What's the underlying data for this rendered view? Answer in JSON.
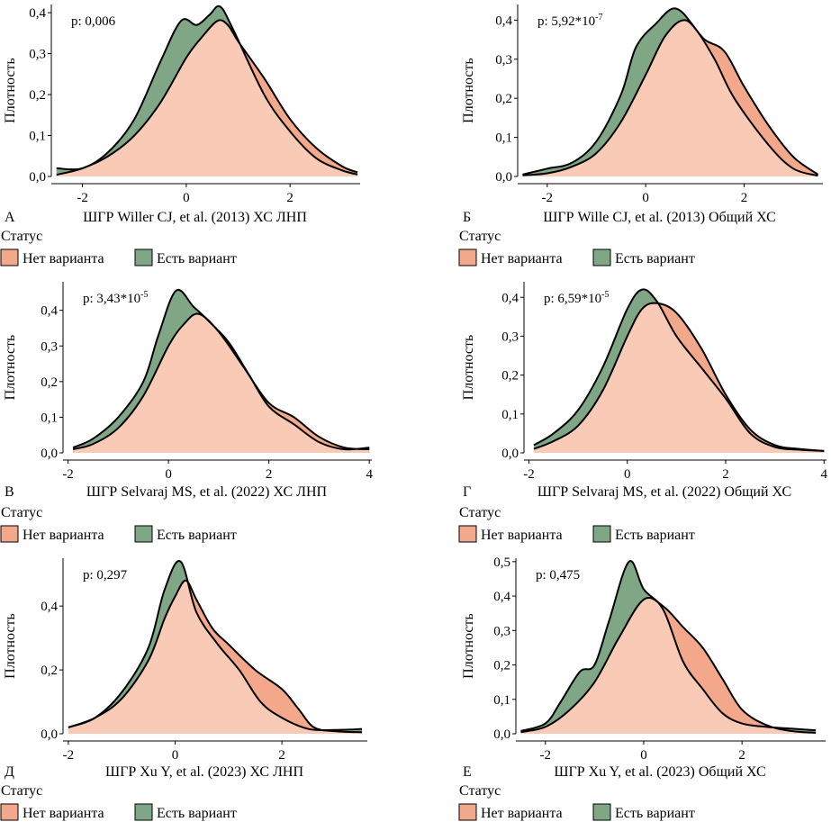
{
  "ylabel": "Плотность",
  "legend": {
    "title": "Статус",
    "items": [
      {
        "label": "Нет варианта",
        "fill": "#F3A78B"
      },
      {
        "label": "Есть вариант",
        "fill": "#7FA785"
      }
    ]
  },
  "colors": {
    "no_variant_fill": "#F3A78B",
    "has_variant_fill": "#7FA785",
    "overlap_fill": "#F9CBB6",
    "line": "#000000"
  },
  "chart_data": [
    {
      "type": "area",
      "panel": "А",
      "xlabel": "ШГР Willer CJ, et al. (2013) ХС ЛНП",
      "annotation": "p: 0,006",
      "xlim": [
        -2.6,
        3.35
      ],
      "ylim": [
        0,
        0.42
      ],
      "xticks": [
        {
          "v": -2,
          "label": "-2"
        },
        {
          "v": 0,
          "label": "0"
        },
        {
          "v": 2,
          "label": "2"
        }
      ],
      "yticks": [
        {
          "v": 0,
          "label": "0,0"
        },
        {
          "v": 0.1,
          "label": "0,1"
        },
        {
          "v": 0.2,
          "label": "0,2"
        },
        {
          "v": 0.3,
          "label": "0,3"
        },
        {
          "v": 0.4,
          "label": "0,4"
        }
      ],
      "series": [
        {
          "name": "Нет варианта",
          "x": [
            -2.5,
            -2.0,
            -1.5,
            -1.0,
            -0.5,
            0.0,
            0.3,
            0.6,
            0.8,
            1.0,
            1.5,
            2.0,
            2.5,
            3.0,
            3.3
          ],
          "y": [
            0.004,
            0.02,
            0.05,
            0.1,
            0.18,
            0.29,
            0.34,
            0.38,
            0.37,
            0.33,
            0.24,
            0.14,
            0.07,
            0.025,
            0.01
          ]
        },
        {
          "name": "Есть вариант",
          "x": [
            -2.5,
            -2.0,
            -1.5,
            -1.0,
            -0.5,
            -0.1,
            0.2,
            0.45,
            0.65,
            0.9,
            1.5,
            2.0,
            2.5,
            3.0,
            3.3
          ],
          "y": [
            0.02,
            0.02,
            0.06,
            0.14,
            0.28,
            0.38,
            0.37,
            0.395,
            0.415,
            0.36,
            0.2,
            0.11,
            0.045,
            0.015,
            0.005
          ]
        }
      ]
    },
    {
      "type": "area",
      "panel": "Б",
      "xlabel": "ШГР Wille CJ, et al. (2013) Общий ХС",
      "annotation": "p: 5,92*10",
      "annotation_sup": "-7",
      "xlim": [
        -2.6,
        3.6
      ],
      "ylim": [
        0,
        0.44
      ],
      "xticks": [
        {
          "v": -2,
          "label": "-2"
        },
        {
          "v": 0,
          "label": "0"
        },
        {
          "v": 2,
          "label": "2"
        }
      ],
      "yticks": [
        {
          "v": 0,
          "label": "0,0"
        },
        {
          "v": 0.1,
          "label": "0,1"
        },
        {
          "v": 0.2,
          "label": "0,2"
        },
        {
          "v": 0.3,
          "label": "0,3"
        },
        {
          "v": 0.4,
          "label": "0,4"
        }
      ],
      "series": [
        {
          "name": "Нет варианта",
          "x": [
            -2.5,
            -2.0,
            -1.5,
            -1.0,
            -0.5,
            0.0,
            0.4,
            0.8,
            1.2,
            1.6,
            2.0,
            2.5,
            3.0,
            3.5
          ],
          "y": [
            0.003,
            0.008,
            0.025,
            0.06,
            0.14,
            0.26,
            0.36,
            0.4,
            0.35,
            0.32,
            0.23,
            0.13,
            0.05,
            0.005
          ]
        },
        {
          "name": "Есть вариант",
          "x": [
            -2.5,
            -2.0,
            -1.5,
            -1.0,
            -0.5,
            -0.2,
            0.2,
            0.6,
            1.0,
            1.4,
            1.8,
            2.5,
            3.0,
            3.5
          ],
          "y": [
            0.005,
            0.02,
            0.035,
            0.09,
            0.21,
            0.33,
            0.39,
            0.43,
            0.38,
            0.3,
            0.2,
            0.08,
            0.02,
            0.002
          ]
        }
      ]
    },
    {
      "type": "area",
      "panel": "В",
      "xlabel": "ШГР Selvaraj MS, et al. (2022) ХС ЛНП",
      "annotation": "p: 3,43*10",
      "annotation_sup": "-5",
      "xlim": [
        -2.1,
        4.05
      ],
      "ylim": [
        0,
        0.48
      ],
      "xticks": [
        {
          "v": -2,
          "label": "-2"
        },
        {
          "v": 0,
          "label": "0"
        },
        {
          "v": 2,
          "label": "2"
        },
        {
          "v": 4,
          "label": "4"
        }
      ],
      "yticks": [
        {
          "v": 0,
          "label": "0,0"
        },
        {
          "v": 0.1,
          "label": "0,1"
        },
        {
          "v": 0.2,
          "label": "0,2"
        },
        {
          "v": 0.3,
          "label": "0,3"
        },
        {
          "v": 0.4,
          "label": "0,4"
        }
      ],
      "series": [
        {
          "name": "Нет варианта",
          "x": [
            -1.9,
            -1.5,
            -1.0,
            -0.5,
            0.0,
            0.3,
            0.6,
            1.0,
            1.5,
            2.0,
            2.5,
            3.0,
            3.5,
            4.0
          ],
          "y": [
            0.01,
            0.025,
            0.07,
            0.16,
            0.3,
            0.36,
            0.39,
            0.34,
            0.24,
            0.14,
            0.1,
            0.045,
            0.015,
            0.01
          ]
        },
        {
          "name": "Есть вариант",
          "x": [
            -1.9,
            -1.5,
            -1.0,
            -0.5,
            -0.2,
            0.15,
            0.5,
            0.8,
            1.2,
            1.6,
            2.0,
            2.5,
            3.0,
            3.5,
            4.0
          ],
          "y": [
            0.015,
            0.04,
            0.1,
            0.2,
            0.33,
            0.455,
            0.41,
            0.37,
            0.31,
            0.22,
            0.13,
            0.08,
            0.03,
            0.01,
            0.015
          ]
        }
      ]
    },
    {
      "type": "area",
      "panel": "Г",
      "xlabel": "ШГР Selvaraj MS, et al. (2022) Общий ХС",
      "annotation": "p: 6,59*10",
      "annotation_sup": "-5",
      "xlim": [
        -2.1,
        4.05
      ],
      "ylim": [
        0,
        0.44
      ],
      "xticks": [
        {
          "v": -2,
          "label": "-2"
        },
        {
          "v": 0,
          "label": "0"
        },
        {
          "v": 2,
          "label": "2"
        },
        {
          "v": 4,
          "label": "4"
        }
      ],
      "yticks": [
        {
          "v": 0,
          "label": "0,0"
        },
        {
          "v": 0.1,
          "label": "0,1"
        },
        {
          "v": 0.2,
          "label": "0,2"
        },
        {
          "v": 0.3,
          "label": "0,3"
        },
        {
          "v": 0.4,
          "label": "0,4"
        }
      ],
      "series": [
        {
          "name": "Нет варианта",
          "x": [
            -1.9,
            -1.5,
            -1.0,
            -0.5,
            0.0,
            0.3,
            0.6,
            1.0,
            1.5,
            2.0,
            2.5,
            3.0,
            3.5,
            4.0
          ],
          "y": [
            0.01,
            0.03,
            0.07,
            0.16,
            0.3,
            0.37,
            0.385,
            0.36,
            0.27,
            0.15,
            0.06,
            0.02,
            0.01,
            0.005
          ]
        },
        {
          "name": "Есть вариант",
          "x": [
            -1.9,
            -1.5,
            -1.0,
            -0.5,
            0.0,
            0.3,
            0.6,
            1.0,
            1.5,
            2.0,
            2.5,
            3.0,
            3.5,
            4.0
          ],
          "y": [
            0.02,
            0.05,
            0.11,
            0.22,
            0.37,
            0.42,
            0.39,
            0.3,
            0.22,
            0.14,
            0.05,
            0.015,
            0.008,
            0.005
          ]
        }
      ]
    },
    {
      "type": "area",
      "panel": "Д",
      "xlabel": "ШГР Xu Y, et al. (2023) ХС ЛНП",
      "annotation": "p: 0,297",
      "xlim": [
        -2.1,
        3.6
      ],
      "ylim": [
        0,
        0.55
      ],
      "xticks": [
        {
          "v": -2,
          "label": "-2"
        },
        {
          "v": 0,
          "label": "0"
        },
        {
          "v": 2,
          "label": "2"
        }
      ],
      "yticks": [
        {
          "v": 0,
          "label": "0,0"
        },
        {
          "v": 0.2,
          "label": "0,2"
        },
        {
          "v": 0.4,
          "label": "0,4"
        }
      ],
      "series": [
        {
          "name": "Нет варианта",
          "x": [
            -2.0,
            -1.5,
            -1.0,
            -0.5,
            -0.2,
            0.0,
            0.2,
            0.4,
            0.7,
            1.0,
            1.5,
            2.0,
            2.3,
            2.6,
            3.0,
            3.5
          ],
          "y": [
            0.02,
            0.05,
            0.11,
            0.23,
            0.36,
            0.43,
            0.48,
            0.42,
            0.33,
            0.28,
            0.2,
            0.14,
            0.08,
            0.02,
            0.008,
            0.005
          ]
        },
        {
          "name": "Есть вариант",
          "x": [
            -2.0,
            -1.5,
            -1.0,
            -0.5,
            -0.2,
            0.1,
            0.4,
            0.8,
            1.2,
            1.6,
            2.0,
            2.5,
            3.0,
            3.5
          ],
          "y": [
            0.02,
            0.05,
            0.13,
            0.27,
            0.45,
            0.54,
            0.38,
            0.28,
            0.2,
            0.1,
            0.05,
            0.015,
            0.012,
            0.015
          ]
        }
      ]
    },
    {
      "type": "area",
      "panel": "Е",
      "xlabel": "ШГР Xu Y, et al. (2023) Общий ХС",
      "annotation": "p: 0,475",
      "xlim": [
        -2.6,
        3.7
      ],
      "ylim": [
        0,
        0.51
      ],
      "xticks": [
        {
          "v": -2,
          "label": "-2"
        },
        {
          "v": 0,
          "label": "0"
        },
        {
          "v": 2,
          "label": "2"
        }
      ],
      "yticks": [
        {
          "v": 0,
          "label": "0,0"
        },
        {
          "v": 0.1,
          "label": "0,1"
        },
        {
          "v": 0.2,
          "label": "0,2"
        },
        {
          "v": 0.3,
          "label": "0,3"
        },
        {
          "v": 0.4,
          "label": "0,4"
        },
        {
          "v": 0.5,
          "label": "0,5"
        }
      ],
      "series": [
        {
          "name": "Нет варианта",
          "x": [
            -2.5,
            -2.0,
            -1.5,
            -1.0,
            -0.5,
            0.0,
            0.4,
            0.8,
            1.2,
            1.6,
            2.0,
            2.5,
            3.0,
            3.5
          ],
          "y": [
            0.005,
            0.02,
            0.07,
            0.15,
            0.28,
            0.39,
            0.37,
            0.31,
            0.25,
            0.16,
            0.07,
            0.025,
            0.008,
            0.003
          ]
        },
        {
          "name": "Есть вариант",
          "x": [
            -2.5,
            -2.0,
            -1.7,
            -1.3,
            -1.0,
            -0.7,
            -0.3,
            0.0,
            0.4,
            0.8,
            1.2,
            1.6,
            2.0,
            2.5,
            3.0,
            3.5
          ],
          "y": [
            0.008,
            0.03,
            0.09,
            0.18,
            0.2,
            0.33,
            0.5,
            0.42,
            0.36,
            0.21,
            0.13,
            0.06,
            0.03,
            0.02,
            0.015,
            0.01
          ]
        }
      ]
    }
  ]
}
